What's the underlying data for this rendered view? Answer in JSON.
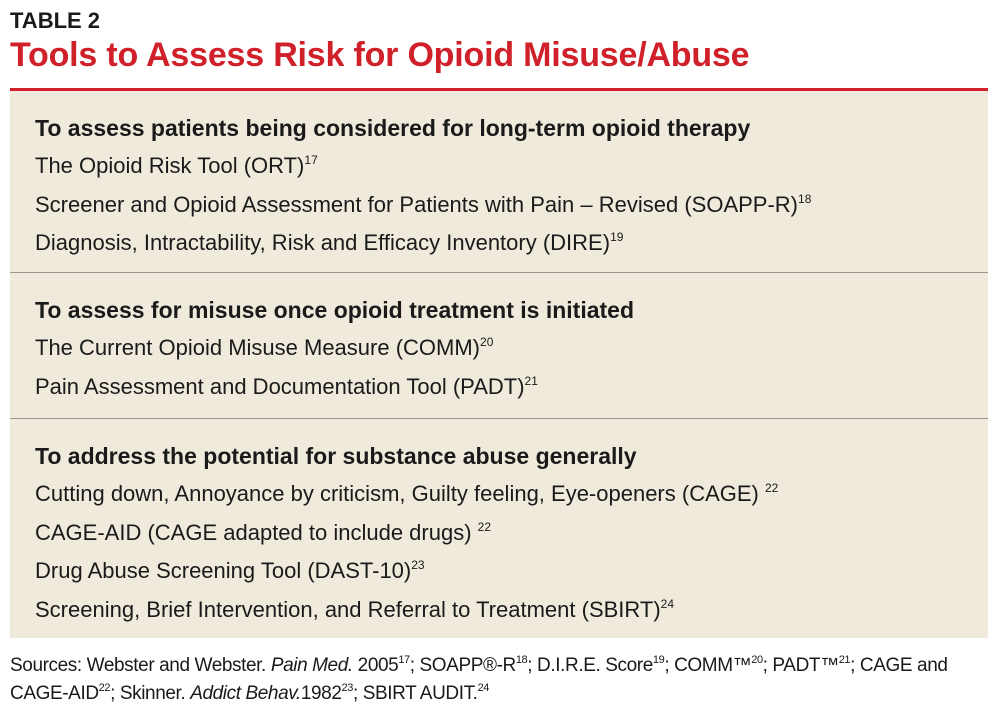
{
  "label": "TABLE 2",
  "title": "Tools to Assess Risk for Opioid Misuse/Abuse",
  "sections": [
    {
      "heading": "To assess patients being considered for long-term opioid therapy",
      "items": [
        {
          "text": "The Opioid Risk Tool (ORT)",
          "ref": "17"
        },
        {
          "text": "Screener and Opioid Assessment for Patients with Pain – Revised (SOAPP-R)",
          "ref": "18"
        },
        {
          "text": "Diagnosis, Intractability, Risk and Efficacy Inventory (DIRE)",
          "ref": "19"
        }
      ]
    },
    {
      "heading": "To assess for misuse once opioid treatment is initiated",
      "items": [
        {
          "text": "The Current Opioid Misuse Measure (COMM)",
          "ref": "20"
        },
        {
          "text": "Pain Assessment and Documentation Tool (PADT)",
          "ref": "21"
        }
      ]
    },
    {
      "heading": "To address the potential for substance abuse generally",
      "items": [
        {
          "text": "Cutting down, Annoyance by criticism, Guilty feeling, Eye-openers (CAGE) ",
          "ref": "22"
        },
        {
          "text": "CAGE-AID (CAGE adapted to include drugs) ",
          "ref": "22"
        },
        {
          "text": "Drug Abuse Screening Tool (DAST-10)",
          "ref": "23"
        },
        {
          "text": "Screening, Brief Intervention, and Referral to Treatment (SBIRT)",
          "ref": "24"
        }
      ]
    }
  ],
  "footer": {
    "p1": "Sources: Webster and Webster. ",
    "i1": "Pain Med.",
    "p2": " 2005",
    "r1": "17",
    "p3": "; SOAPP®-R",
    "r2": "18",
    "p4": "; D.I.R.E. Score",
    "r3": "19",
    "p5": "; COMM™",
    "r4": "20",
    "p6": "; PADT™",
    "r5": "21",
    "p7": "; CAGE and CAGE-AID",
    "r6": "22",
    "p8": "; Skinner. ",
    "i2": "Addict Behav.",
    "p9": "1982",
    "r7": "23",
    "p10": "; SBIRT AUDIT.",
    "r8": "24"
  }
}
